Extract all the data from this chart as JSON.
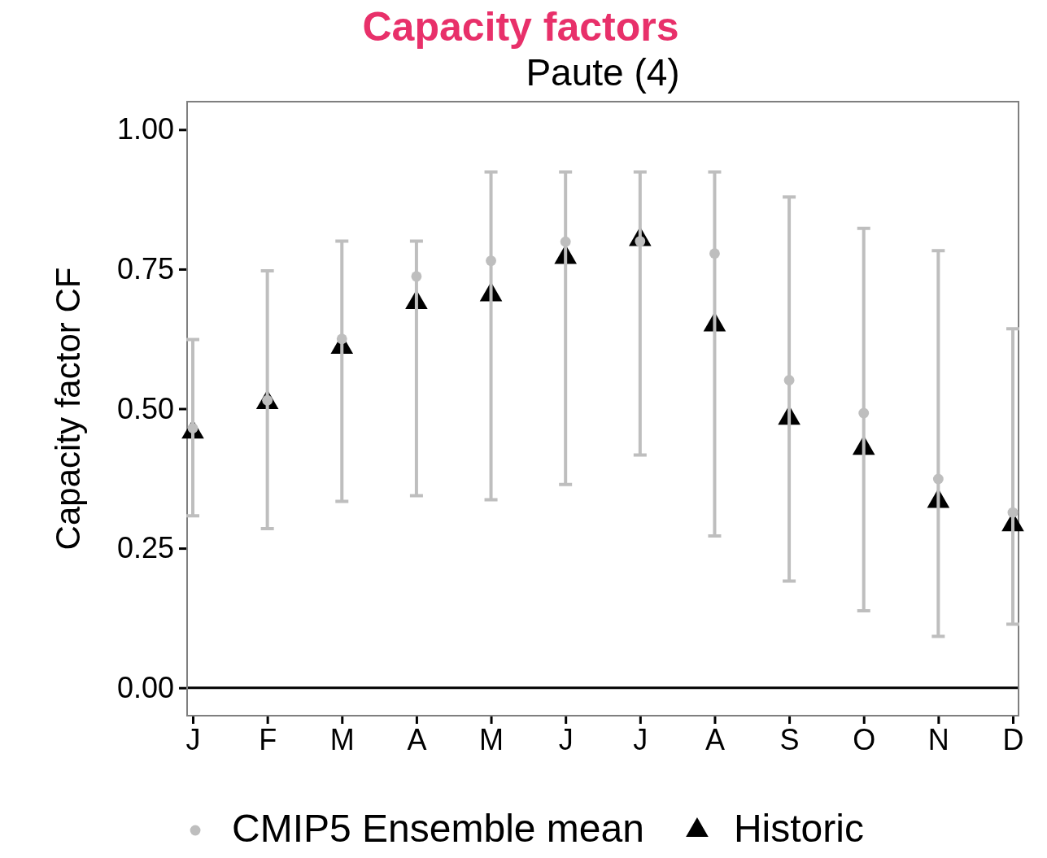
{
  "chart_data": {
    "type": "scatter",
    "title": "Capacity factors",
    "subtitle": "Paute (4)",
    "ylabel": "Capacity factor CF",
    "categories": [
      "J",
      "F",
      "M",
      "A",
      "M",
      "J",
      "J",
      "A",
      "S",
      "O",
      "N",
      "D"
    ],
    "series": [
      {
        "name": "CMIP5 Ensemble mean",
        "color": "#bebebe",
        "marker": "circle",
        "values": [
          0.465,
          0.515,
          0.625,
          0.737,
          0.765,
          0.799,
          0.8,
          0.778,
          0.551,
          0.492,
          0.374,
          0.314
        ],
        "errors": [
          [
            0.308,
            0.624
          ],
          [
            0.285,
            0.747
          ],
          [
            0.334,
            0.8
          ],
          [
            0.344,
            0.8
          ],
          [
            0.337,
            0.924
          ],
          [
            0.364,
            0.924
          ],
          [
            0.417,
            0.924
          ],
          [
            0.272,
            0.924
          ],
          [
            0.191,
            0.879
          ],
          [
            0.138,
            0.823
          ],
          [
            0.092,
            0.783
          ],
          [
            0.114,
            0.643
          ]
        ]
      },
      {
        "name": "Historic",
        "color": "#000000",
        "marker": "triangle",
        "values": [
          0.458,
          0.511,
          0.61,
          0.69,
          0.704,
          0.771,
          0.803,
          0.65,
          0.483,
          0.429,
          0.334,
          0.292
        ]
      }
    ],
    "ylim": [
      -0.05,
      1.05
    ],
    "yticks": [
      {
        "value": 0,
        "label": "0.00"
      },
      {
        "value": 0.25,
        "label": "0.25"
      },
      {
        "value": 0.5,
        "label": "0.50"
      },
      {
        "value": 0.75,
        "label": "0.75"
      },
      {
        "value": 1,
        "label": "1.00"
      }
    ],
    "ref_lines": [
      {
        "axis": "y",
        "value": 0,
        "color": "#000000"
      }
    ],
    "grid": false,
    "legend": "bottom"
  }
}
